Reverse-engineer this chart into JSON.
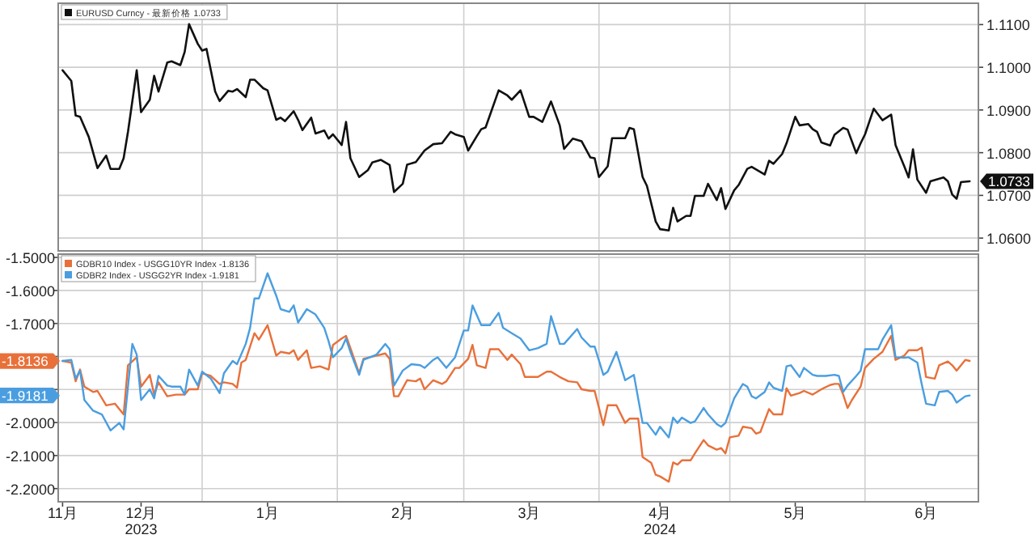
{
  "chart_data": [
    {
      "type": "line",
      "xlim": [
        "2023-11-29",
        "2024-06-27"
      ],
      "xticks": [
        {
          "value": "2024-01-01",
          "label": null
        },
        {
          "value": "2024-02-01",
          "label": null
        },
        {
          "value": "2024-03-01",
          "label": null
        },
        {
          "value": "2024-04-01",
          "label": null
        },
        {
          "value": "2024-05-01",
          "label": null
        },
        {
          "value": "2024-06-01",
          "label": null
        }
      ],
      "y2lim": [
        1.057,
        1.115
      ],
      "y2ticks": [
        {
          "value": 1.06,
          "label": "1.0600"
        },
        {
          "value": 1.07,
          "label": "1.0700"
        },
        {
          "value": 1.08,
          "label": "1.0800"
        },
        {
          "value": 1.09,
          "label": "1.0900"
        },
        {
          "value": 1.1,
          "label": "1.1000"
        },
        {
          "value": 1.11,
          "label": "1.1100"
        }
      ],
      "tick_labels": "y",
      "grid": true,
      "legend": "top left",
      "annotations": [
        "1.0733"
      ],
      "series": [
        {
          "name": "EURUSD Curncy - 最新价格 1.0733",
          "color": "#111111",
          "axis": "y2",
          "x": [
            "2023-11-30",
            "2023-12-02",
            "2023-12-03",
            "2023-12-04",
            "2023-12-06",
            "2023-12-08",
            "2023-12-10",
            "2023-12-11",
            "2023-12-13",
            "2023-12-14",
            "2023-12-15",
            "2023-12-17",
            "2023-12-18",
            "2023-12-20",
            "2023-12-21",
            "2023-12-22",
            "2023-12-24",
            "2023-12-25",
            "2023-12-27",
            "2023-12-28",
            "2023-12-29",
            "2023-12-31",
            "2024-01-01",
            "2024-01-02",
            "2024-01-04",
            "2024-01-05",
            "2024-01-07",
            "2024-01-08",
            "2024-01-09",
            "2024-01-11",
            "2024-01-12",
            "2024-01-13",
            "2024-01-15",
            "2024-01-16",
            "2024-01-18",
            "2024-01-19",
            "2024-01-20",
            "2024-01-22",
            "2024-01-23",
            "2024-01-24",
            "2024-01-26",
            "2024-01-27",
            "2024-01-29",
            "2024-01-30",
            "2024-01-31",
            "2024-02-02",
            "2024-02-03",
            "2024-02-04",
            "2024-02-06",
            "2024-02-08",
            "2024-02-09",
            "2024-02-11",
            "2024-02-13",
            "2024-02-14",
            "2024-02-16",
            "2024-02-17",
            "2024-02-19",
            "2024-02-21",
            "2024-02-23",
            "2024-02-25",
            "2024-02-27",
            "2024-02-28",
            "2024-03-01",
            "2024-03-02",
            "2024-03-04",
            "2024-03-05",
            "2024-03-06",
            "2024-03-09",
            "2024-03-11",
            "2024-03-12",
            "2024-03-14",
            "2024-03-16",
            "2024-03-17",
            "2024-03-19",
            "2024-03-21",
            "2024-03-23",
            "2024-03-24",
            "2024-03-26",
            "2024-03-28",
            "2024-03-30",
            "2024-03-31",
            "2024-04-01",
            "2024-04-03",
            "2024-04-04",
            "2024-04-07",
            "2024-04-08",
            "2024-04-09",
            "2024-04-11",
            "2024-04-12",
            "2024-04-14",
            "2024-04-15",
            "2024-04-17",
            "2024-04-18",
            "2024-04-19",
            "2024-04-21",
            "2024-04-22",
            "2024-04-23",
            "2024-04-25",
            "2024-04-26",
            "2024-04-28",
            "2024-04-29",
            "2024-04-30",
            "2024-05-02",
            "2024-05-03",
            "2024-05-05",
            "2024-05-06",
            "2024-05-09",
            "2024-05-10",
            "2024-05-11",
            "2024-05-13",
            "2024-05-14",
            "2024-05-16",
            "2024-05-17",
            "2024-05-19",
            "2024-05-20",
            "2024-05-21",
            "2024-05-22",
            "2024-05-24",
            "2024-05-25",
            "2024-05-27",
            "2024-05-28",
            "2024-05-30",
            "2024-05-31",
            "2024-06-01",
            "2024-06-03",
            "2024-06-05",
            "2024-06-07",
            "2024-06-08",
            "2024-06-10",
            "2024-06-11",
            "2024-06-12",
            "2024-06-13",
            "2024-06-15",
            "2024-06-16",
            "2024-06-19",
            "2024-06-20",
            "2024-06-21",
            "2024-06-22",
            "2024-06-23",
            "2024-06-25"
          ],
          "values": [
            1.0993,
            1.0968,
            1.0887,
            1.0884,
            1.0837,
            1.0764,
            1.0793,
            1.0762,
            1.0762,
            1.0787,
            1.0849,
            1.0993,
            1.0895,
            1.0924,
            1.098,
            1.0943,
            1.1011,
            1.1014,
            1.1005,
            1.1036,
            1.1101,
            1.1055,
            1.1039,
            1.1043,
            1.0943,
            1.0921,
            1.0945,
            1.0943,
            1.0949,
            1.093,
            1.0971,
            1.0971,
            1.0951,
            1.0946,
            1.0877,
            1.0882,
            1.0874,
            1.0897,
            1.0877,
            1.0853,
            1.0882,
            1.0845,
            1.0852,
            1.0833,
            1.0843,
            1.0818,
            1.0872,
            1.0787,
            1.0743,
            1.0759,
            1.0777,
            1.0783,
            1.0771,
            1.0708,
            1.0727,
            1.0772,
            1.0778,
            1.0805,
            1.082,
            1.0822,
            1.0849,
            1.0843,
            1.0837,
            1.0805,
            1.0839,
            1.0855,
            1.0859,
            1.0946,
            1.0934,
            1.0924,
            1.0946,
            1.0884,
            1.0884,
            1.0872,
            1.092,
            1.0864,
            1.0809,
            1.0833,
            1.0827,
            1.0789,
            1.0787,
            1.0743,
            1.0768,
            1.0834,
            1.0834,
            1.0858,
            1.0855,
            1.0743,
            1.0722,
            1.0639,
            1.0621,
            1.0618,
            1.0671,
            1.0639,
            1.0652,
            1.0652,
            1.0699,
            1.0699,
            1.0727,
            1.0689,
            1.0717,
            1.0668,
            1.0712,
            1.0724,
            1.0762,
            1.0767,
            1.0749,
            1.0781,
            1.0774,
            1.0797,
            1.0822,
            1.0884,
            1.0864,
            1.0867,
            1.0855,
            1.0849,
            1.0824,
            1.0817,
            1.0842,
            1.0858,
            1.0854,
            1.0799,
            1.0822,
            1.0843,
            1.0903,
            1.0876,
            1.0889,
            1.0818,
            1.0768,
            1.0742,
            1.0808,
            1.0737,
            1.0706,
            1.0733,
            1.0742,
            1.0733,
            1.0702,
            1.0692,
            1.0731,
            1.0733
          ]
        }
      ]
    },
    {
      "type": "line",
      "xlim": [
        "2023-11-29",
        "2024-06-27"
      ],
      "xticks": [
        {
          "value": "2023-11-30",
          "label": "11月"
        },
        {
          "value": "2023-12-18",
          "label": "12月\n2023"
        },
        {
          "value": "2024-01-01",
          "label": null
        },
        {
          "value": "2024-01-16",
          "label": "1月"
        },
        {
          "value": "2024-02-01",
          "label": null
        },
        {
          "value": "2024-02-16",
          "label": "2月"
        },
        {
          "value": "2024-03-01",
          "label": null
        },
        {
          "value": "2024-03-16",
          "label": "3月"
        },
        {
          "value": "2024-04-01",
          "label": null
        },
        {
          "value": "2024-04-15",
          "label": "4月\n2024"
        },
        {
          "value": "2024-05-01",
          "label": null
        },
        {
          "value": "2024-05-16",
          "label": "5月"
        },
        {
          "value": "2024-06-01",
          "label": null
        },
        {
          "value": "2024-06-15",
          "label": "6月"
        }
      ],
      "ylim": [
        -2.24,
        -1.49
      ],
      "yticks": [
        {
          "value": -2.2,
          "label": "-2.2000"
        },
        {
          "value": -2.1,
          "label": "-2.1000"
        },
        {
          "value": -2.0,
          "label": "-2.0000"
        },
        {
          "value": -1.9,
          "label": null
        },
        {
          "value": -1.8,
          "label": null
        },
        {
          "value": -1.7,
          "label": "-1.7000"
        },
        {
          "value": -1.6,
          "label": "-1.6000"
        },
        {
          "value": -1.5,
          "label": "-1.5000"
        }
      ],
      "grid": true,
      "legend": "top left",
      "annotations": [
        "-1.8136",
        "-1.9181"
      ],
      "series": [
        {
          "name": "GDBR10 Index - USGG10YR Index -1.8136",
          "color": "#e8703a",
          "x": [
            "2023-11-30",
            "2023-12-02",
            "2023-12-03",
            "2023-12-04",
            "2023-12-05",
            "2023-12-07",
            "2023-12-08",
            "2023-12-10",
            "2023-12-12",
            "2023-12-14",
            "2023-12-15",
            "2023-12-17",
            "2023-12-18",
            "2023-12-20",
            "2023-12-21",
            "2023-12-22",
            "2023-12-24",
            "2023-12-26",
            "2023-12-28",
            "2023-12-29",
            "2023-12-31",
            "2024-01-01",
            "2024-01-03",
            "2024-01-05",
            "2024-01-06",
            "2024-01-08",
            "2024-01-09",
            "2024-01-10",
            "2024-01-11",
            "2024-01-13",
            "2024-01-14",
            "2024-01-16",
            "2024-01-18",
            "2024-01-19",
            "2024-01-21",
            "2024-01-22",
            "2024-01-23",
            "2024-01-25",
            "2024-01-26",
            "2024-01-28",
            "2024-01-30",
            "2024-01-31",
            "2024-02-02",
            "2024-02-03",
            "2024-02-04",
            "2024-02-06",
            "2024-02-07",
            "2024-02-10",
            "2024-02-12",
            "2024-02-13",
            "2024-02-14",
            "2024-02-15",
            "2024-02-17",
            "2024-02-19",
            "2024-02-20",
            "2024-02-21",
            "2024-02-23",
            "2024-02-25",
            "2024-02-26",
            "2024-02-28",
            "2024-02-29",
            "2024-03-02",
            "2024-03-03",
            "2024-03-04",
            "2024-03-06",
            "2024-03-07",
            "2024-03-09",
            "2024-03-11",
            "2024-03-12",
            "2024-03-14",
            "2024-03-15",
            "2024-03-18",
            "2024-03-20",
            "2024-03-21",
            "2024-03-23",
            "2024-03-25",
            "2024-03-27",
            "2024-03-28",
            "2024-03-30",
            "2024-03-31",
            "2024-04-02",
            "2024-04-03",
            "2024-04-05",
            "2024-04-07",
            "2024-04-08",
            "2024-04-10",
            "2024-04-11",
            "2024-04-13",
            "2024-04-14",
            "2024-04-15",
            "2024-04-17",
            "2024-04-18",
            "2024-04-19",
            "2024-04-20",
            "2024-04-22",
            "2024-04-23",
            "2024-04-25",
            "2024-04-26",
            "2024-04-28",
            "2024-04-29",
            "2024-04-30",
            "2024-05-01",
            "2024-05-03",
            "2024-05-04",
            "2024-05-06",
            "2024-05-07",
            "2024-05-08",
            "2024-05-10",
            "2024-05-11",
            "2024-05-13",
            "2024-05-14",
            "2024-05-15",
            "2024-05-17",
            "2024-05-18",
            "2024-05-20",
            "2024-05-22",
            "2024-05-24",
            "2024-05-25",
            "2024-05-26",
            "2024-05-27",
            "2024-05-28",
            "2024-05-29",
            "2024-05-31",
            "2024-06-01",
            "2024-06-03",
            "2024-06-05",
            "2024-06-07",
            "2024-06-08",
            "2024-06-10",
            "2024-06-11",
            "2024-06-13",
            "2024-06-14",
            "2024-06-15",
            "2024-06-17",
            "2024-06-18",
            "2024-06-20",
            "2024-06-21",
            "2024-06-22",
            "2024-06-24",
            "2024-06-25"
          ],
          "values": [
            -1.8136,
            -1.8184,
            -1.8751,
            -1.8395,
            -1.8912,
            -1.9074,
            -1.9042,
            -1.9479,
            -1.943,
            -1.9754,
            -1.8265,
            -1.8023,
            -1.8912,
            -1.8556,
            -1.9155,
            -1.8783,
            -1.9204,
            -1.9155,
            -1.9155,
            -1.8993,
            -1.8993,
            -1.8508,
            -1.8589,
            -1.8832,
            -1.8783,
            -1.8832,
            -1.8945,
            -1.8184,
            -1.8103,
            -1.7294,
            -1.7489,
            -1.7052,
            -1.7974,
            -1.7861,
            -1.7909,
            -1.7812,
            -1.8103,
            -1.7812,
            -1.8346,
            -1.8298,
            -1.8395,
            -1.765,
            -1.7456,
            -1.7375,
            -1.7747,
            -1.8508,
            -1.8071,
            -1.7974,
            -1.7909,
            -1.8071,
            -1.9204,
            -1.9204,
            -1.8718,
            -1.8751,
            -1.867,
            -1.8993,
            -1.8718,
            -1.8832,
            -1.8751,
            -1.8346,
            -1.8346,
            -1.8071,
            -1.765,
            -1.8265,
            -1.8346,
            -1.778,
            -1.778,
            -1.8103,
            -1.7942,
            -1.8233,
            -1.8621,
            -1.8621,
            -1.8459,
            -1.8459,
            -1.8621,
            -1.8751,
            -1.8783,
            -1.8993,
            -1.9042,
            -1.9042,
            -2.0077,
            -1.9479,
            -1.9479,
            -2.0013,
            -1.9883,
            -1.9883,
            -2.1048,
            -2.1226,
            -2.1582,
            -2.1631,
            -2.1792,
            -2.121,
            -2.1275,
            -2.1145,
            -2.1145,
            -2.0935,
            -2.053,
            -2.0692,
            -2.0822,
            -2.0773,
            -2.0935,
            -2.045,
            -2.0401,
            -2.0126,
            -2.0174,
            -2.0336,
            -2.0288,
            -1.9592,
            -1.9754,
            -1.9754,
            -1.8961,
            -1.9187,
            -1.9107,
            -1.9042,
            -1.9155,
            -1.8993,
            -1.8864,
            -1.8832,
            -1.8832,
            -1.9155,
            -1.956,
            -1.9317,
            -1.8912,
            -1.8346,
            -1.8071,
            -1.7861,
            -1.7375,
            -1.8103,
            -1.7974,
            -1.7812,
            -1.7812,
            -1.7731,
            -1.8621,
            -1.867,
            -1.8265,
            -1.8152,
            -1.8265,
            -1.8427,
            -1.8103,
            -1.8136
          ]
        },
        {
          "name": "GDBR2 Index - USGG2YR Index -1.9181",
          "color": "#4a9ee0",
          "x": [
            "2023-11-30",
            "2023-12-02",
            "2023-12-03",
            "2023-12-04",
            "2023-12-05",
            "2023-12-07",
            "2023-12-09",
            "2023-12-11",
            "2023-12-13",
            "2023-12-14",
            "2023-12-16",
            "2023-12-17",
            "2023-12-18",
            "2023-12-20",
            "2023-12-21",
            "2023-12-22",
            "2023-12-24",
            "2023-12-25",
            "2023-12-27",
            "2023-12-28",
            "2023-12-29",
            "2023-12-31",
            "2024-01-01",
            "2024-01-03",
            "2024-01-05",
            "2024-01-06",
            "2024-01-08",
            "2024-01-09",
            "2024-01-11",
            "2024-01-12",
            "2024-01-13",
            "2024-01-14",
            "2024-01-16",
            "2024-01-18",
            "2024-01-19",
            "2024-01-21",
            "2024-01-22",
            "2024-01-23",
            "2024-01-25",
            "2024-01-26",
            "2024-01-27",
            "2024-01-29",
            "2024-01-30",
            "2024-01-31",
            "2024-02-02",
            "2024-02-03",
            "2024-02-04",
            "2024-02-06",
            "2024-02-07",
            "2024-02-10",
            "2024-02-12",
            "2024-02-13",
            "2024-02-14",
            "2024-02-16",
            "2024-02-18",
            "2024-02-20",
            "2024-02-21",
            "2024-02-23",
            "2024-02-24",
            "2024-02-26",
            "2024-02-28",
            "2024-03-01",
            "2024-03-02",
            "2024-03-03",
            "2024-03-05",
            "2024-03-07",
            "2024-03-09",
            "2024-03-10",
            "2024-03-12",
            "2024-03-14",
            "2024-03-16",
            "2024-03-18",
            "2024-03-20",
            "2024-03-21",
            "2024-03-23",
            "2024-03-24",
            "2024-03-27",
            "2024-03-28",
            "2024-03-30",
            "2024-03-31",
            "2024-04-02",
            "2024-04-03",
            "2024-04-05",
            "2024-04-07",
            "2024-04-09",
            "2024-04-11",
            "2024-04-12",
            "2024-04-14",
            "2024-04-15",
            "2024-04-17",
            "2024-04-18",
            "2024-04-19",
            "2024-04-20",
            "2024-04-22",
            "2024-04-23",
            "2024-04-25",
            "2024-04-26",
            "2024-04-28",
            "2024-04-29",
            "2024-04-30",
            "2024-05-02",
            "2024-05-04",
            "2024-05-05",
            "2024-05-06",
            "2024-05-07",
            "2024-05-09",
            "2024-05-10",
            "2024-05-11",
            "2024-05-13",
            "2024-05-14",
            "2024-05-15",
            "2024-05-17",
            "2024-05-18",
            "2024-05-20",
            "2024-05-21",
            "2024-05-23",
            "2024-05-25",
            "2024-05-26",
            "2024-05-27",
            "2024-05-28",
            "2024-05-30",
            "2024-05-31",
            "2024-06-01",
            "2024-06-04",
            "2024-06-05",
            "2024-06-07",
            "2024-06-08",
            "2024-06-10",
            "2024-06-11",
            "2024-06-13",
            "2024-06-14",
            "2024-06-15",
            "2024-06-17",
            "2024-06-18",
            "2024-06-20",
            "2024-06-21",
            "2024-06-22",
            "2024-06-24",
            "2024-06-25"
          ],
          "values": [
            -1.8136,
            -1.8103,
            -1.867,
            -1.8427,
            -1.9317,
            -1.9641,
            -1.9754,
            -2.0239,
            -2.0013,
            -2.0207,
            -1.7618,
            -1.7942,
            -1.9317,
            -1.8993,
            -1.9268,
            -1.8589,
            -1.888,
            -1.8912,
            -1.8912,
            -1.9155,
            -1.8395,
            -1.888,
            -1.8459,
            -1.867,
            -1.9107,
            -1.8508,
            -1.8136,
            -1.8233,
            -1.7618,
            -1.7133,
            -1.6243,
            -1.6243,
            -1.5482,
            -1.6162,
            -1.6566,
            -1.6647,
            -1.6453,
            -1.6971,
            -1.6566,
            -1.6647,
            -1.6728,
            -1.7133,
            -1.7537,
            -1.8023,
            -1.7747,
            -1.7456,
            -1.7861,
            -1.8556,
            -1.8103,
            -1.7942,
            -1.7618,
            -1.778,
            -1.888,
            -1.8427,
            -1.8233,
            -1.8265,
            -1.8346,
            -1.8103,
            -1.8023,
            -1.8346,
            -1.8023,
            -1.7214,
            -1.7214,
            -1.6453,
            -1.7052,
            -1.7052,
            -1.668,
            -1.7133,
            -1.7294,
            -1.7456,
            -1.7812,
            -1.7747,
            -1.7618,
            -1.6777,
            -1.7618,
            -1.7618,
            -1.7165,
            -1.7424,
            -1.7699,
            -1.7699,
            -1.8556,
            -1.8459,
            -1.7861,
            -1.8718,
            -1.8556,
            -2.0013,
            -2.0013,
            -2.0369,
            -2.0126,
            -2.045,
            -1.9851,
            -2.0013,
            -1.9851,
            -2.0013,
            -1.9964,
            -1.956,
            -1.9754,
            -2.0045,
            -2.0126,
            -2.0013,
            -1.9268,
            -1.8832,
            -1.8912,
            -1.9204,
            -1.9268,
            -1.9074,
            -1.8783,
            -1.8945,
            -1.9042,
            -1.8298,
            -1.8265,
            -1.8621,
            -1.8346,
            -1.8556,
            -1.8589,
            -1.8589,
            -1.8556,
            -1.8589,
            -1.9074,
            -1.888,
            -1.8589,
            -1.8427,
            -1.778,
            -1.778,
            -1.7489,
            -1.7052,
            -1.8023,
            -1.8039,
            -1.8023,
            -1.8184,
            -1.8832,
            -1.943,
            -1.9479,
            -1.9074,
            -1.9042,
            -1.9155,
            -1.9398,
            -1.9204,
            -1.9181
          ]
        }
      ]
    }
  ]
}
